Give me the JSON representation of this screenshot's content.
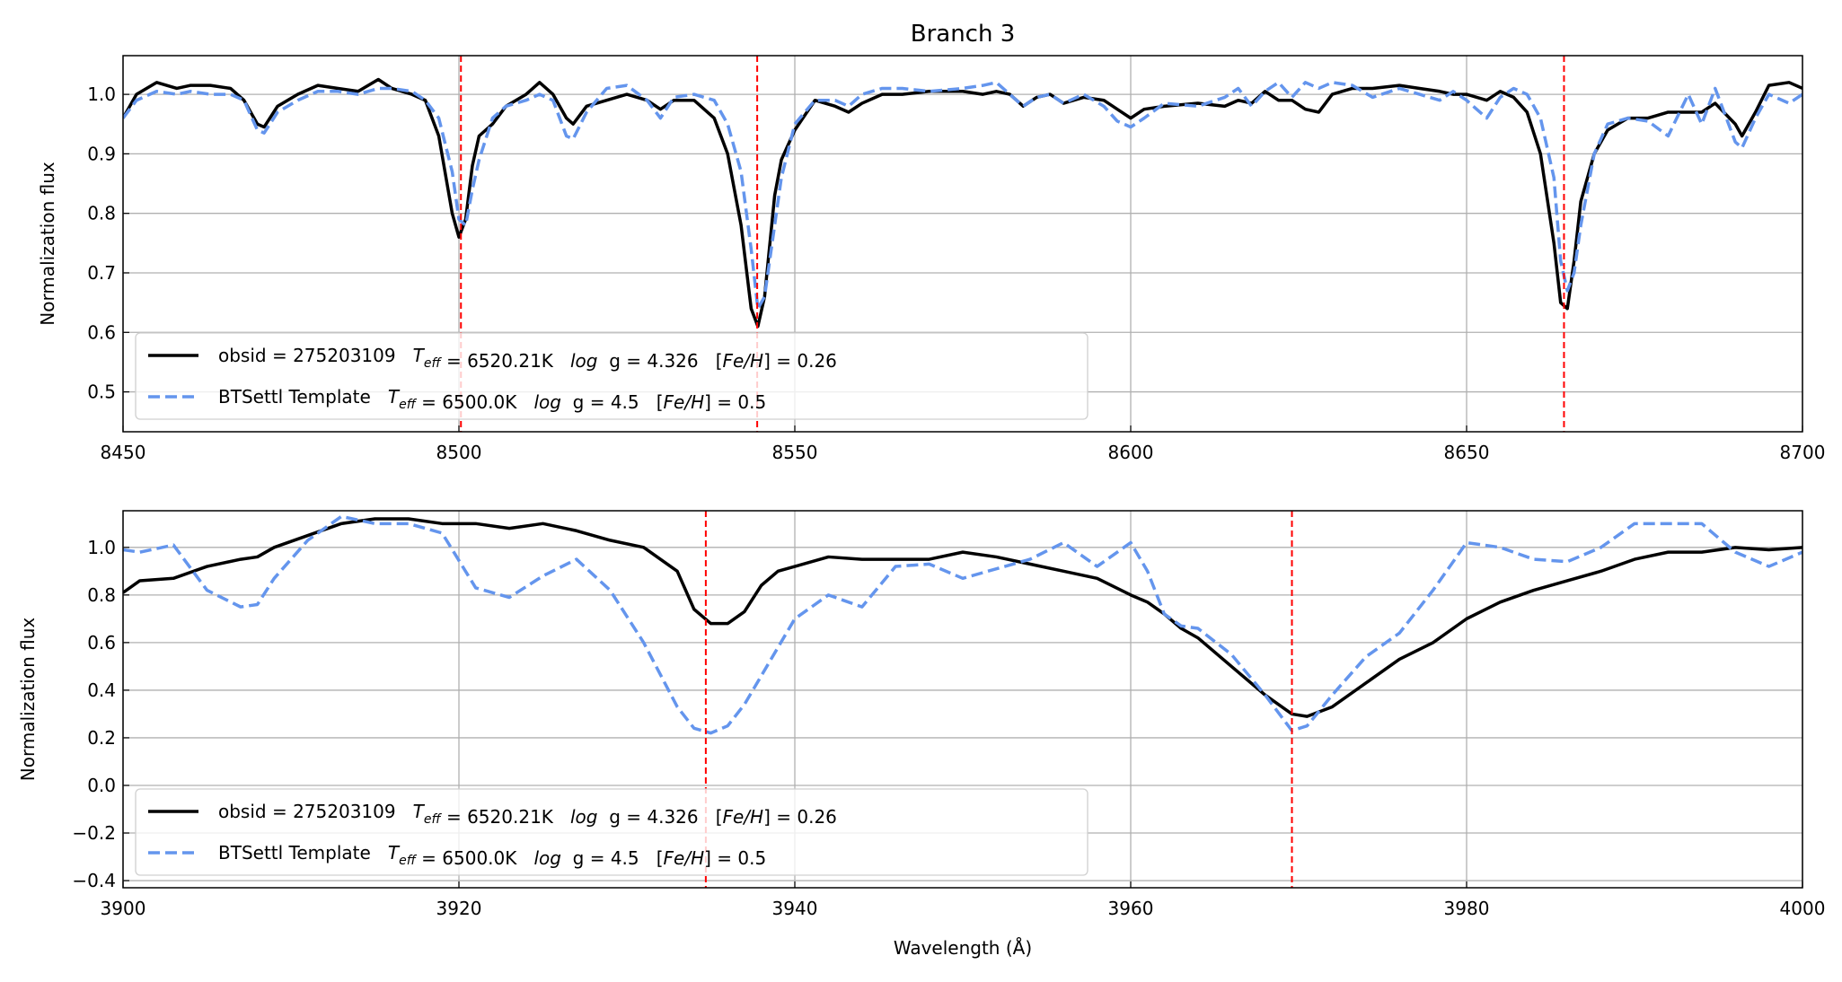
{
  "chart_data": [
    {
      "type": "line",
      "title": "Branch 3",
      "ylabel": "Normalization flux",
      "x": [
        8450,
        8452,
        8455,
        8458,
        8460,
        8463,
        8466,
        8468,
        8470,
        8471,
        8473,
        8476,
        8479,
        8482,
        8485,
        8488,
        8490,
        8493,
        8495,
        8497,
        8499,
        8500,
        8501,
        8502,
        8503,
        8505,
        8507,
        8510,
        8512,
        8514,
        8516,
        8517,
        8519,
        8522,
        8525,
        8528,
        8530,
        8532,
        8535,
        8538,
        8540,
        8542,
        8543.5,
        8544.5,
        8545.5,
        8547,
        8548,
        8550,
        8553,
        8556,
        8558,
        8560,
        8563,
        8566,
        8570,
        8575,
        8578,
        8580,
        8582,
        8584,
        8586,
        8588,
        8590,
        8593,
        8596,
        8598,
        8600,
        8602,
        8605,
        8610,
        8614,
        8616,
        8618,
        8620,
        8622,
        8624,
        8626,
        8628,
        8630,
        8633,
        8636,
        8640,
        8643,
        8646,
        8648,
        8650,
        8653,
        8655,
        8657,
        8659,
        8661,
        8663,
        8664,
        8665,
        8666,
        8667,
        8669,
        8671,
        8674,
        8677,
        8680,
        8683,
        8685,
        8687,
        8690,
        8691,
        8693,
        8695,
        8698,
        8700
      ],
      "series": [
        {
          "name": "obsid = 275203109   Teff = 6520.21K   log  g = 4.326   [Fe/H] = 0.26",
          "color": "#000000",
          "dashed": false,
          "values": [
            0.96,
            1.0,
            1.02,
            1.01,
            1.015,
            1.015,
            1.01,
            0.99,
            0.95,
            0.945,
            0.98,
            1.0,
            1.015,
            1.01,
            1.005,
            1.025,
            1.01,
            1.0,
            0.99,
            0.93,
            0.8,
            0.76,
            0.79,
            0.88,
            0.93,
            0.95,
            0.98,
            1.0,
            1.02,
            1.0,
            0.96,
            0.95,
            0.98,
            0.99,
            1.0,
            0.99,
            0.975,
            0.99,
            0.99,
            0.96,
            0.9,
            0.78,
            0.64,
            0.61,
            0.66,
            0.83,
            0.89,
            0.94,
            0.99,
            0.98,
            0.97,
            0.985,
            1.0,
            1.0,
            1.005,
            1.005,
            1.0,
            1.005,
            1.0,
            0.98,
            0.995,
            1.0,
            0.985,
            0.995,
            0.99,
            0.975,
            0.96,
            0.975,
            0.98,
            0.985,
            0.98,
            0.99,
            0.985,
            1.005,
            0.99,
            0.99,
            0.975,
            0.97,
            1.0,
            1.01,
            1.01,
            1.015,
            1.01,
            1.005,
            1.0,
            1.0,
            0.99,
            1.005,
            0.995,
            0.97,
            0.9,
            0.75,
            0.65,
            0.64,
            0.72,
            0.82,
            0.9,
            0.94,
            0.96,
            0.96,
            0.97,
            0.97,
            0.97,
            0.985,
            0.95,
            0.93,
            0.97,
            1.015,
            1.02,
            1.01
          ]
        },
        {
          "name": "BTSettl Template   Teff = 6500.0K   log  g = 4.5   [Fe/H] = 0.5",
          "color": "#6495ED",
          "dashed": true,
          "values": [
            0.96,
            0.99,
            1.005,
            1.0,
            1.005,
            1.0,
            1.0,
            0.99,
            0.94,
            0.935,
            0.97,
            0.99,
            1.005,
            1.005,
            1.0,
            1.01,
            1.01,
            1.005,
            0.99,
            0.96,
            0.87,
            0.79,
            0.78,
            0.84,
            0.89,
            0.96,
            0.98,
            0.99,
            1.0,
            0.99,
            0.93,
            0.925,
            0.97,
            1.01,
            1.015,
            0.99,
            0.96,
            0.995,
            1.0,
            0.99,
            0.95,
            0.87,
            0.74,
            0.64,
            0.66,
            0.78,
            0.86,
            0.95,
            0.99,
            0.99,
            0.98,
            1.0,
            1.01,
            1.01,
            1.005,
            1.01,
            1.015,
            1.02,
            1.0,
            0.98,
            0.995,
            1.0,
            0.985,
            1.0,
            0.98,
            0.955,
            0.945,
            0.96,
            0.985,
            0.98,
            0.995,
            1.01,
            0.98,
            1.005,
            1.02,
            0.995,
            1.02,
            1.01,
            1.02,
            1.015,
            0.995,
            1.01,
            1.0,
            0.99,
            1.005,
            0.99,
            0.96,
            0.995,
            1.01,
            1.0,
            0.96,
            0.86,
            0.72,
            0.67,
            0.7,
            0.78,
            0.9,
            0.95,
            0.96,
            0.955,
            0.93,
            1.0,
            0.95,
            1.01,
            0.92,
            0.91,
            0.96,
            1.0,
            0.985,
            1.0
          ]
        }
      ],
      "xlim": [
        8450,
        8700
      ],
      "xticks": [
        8450,
        8500,
        8550,
        8600,
        8650,
        8700
      ],
      "ylim": [
        0.433,
        1.065
      ],
      "yticks": [
        0.5,
        0.6,
        0.7,
        0.8,
        0.9,
        {
          "value": 1.0,
          "label": "1.0"
        }
      ],
      "grid": true,
      "legend": "lower left",
      "vlines": [
        8500.3,
        8544.4,
        8664.5
      ],
      "vline_color": "#ff0000"
    },
    {
      "type": "line",
      "ylabel": "Normalization flux",
      "xlabel": "Wavelength (Å)",
      "x": [
        3900,
        3901,
        3903,
        3905,
        3907,
        3908,
        3909,
        3911,
        3913,
        3915,
        3917,
        3919,
        3921,
        3923,
        3925,
        3927,
        3929,
        3931,
        3933,
        3934,
        3935,
        3936,
        3937,
        3938,
        3939,
        3940,
        3942,
        3944,
        3946,
        3948,
        3950,
        3952,
        3954,
        3956,
        3958,
        3960,
        3961,
        3962,
        3963,
        3964,
        3966,
        3968,
        3969.6,
        3970.5,
        3972,
        3974,
        3976,
        3978,
        3980,
        3982,
        3984,
        3986,
        3988,
        3990,
        3992,
        3994,
        3996,
        3998,
        4000
      ],
      "series": [
        {
          "name": "obsid = 275203109   Teff = 6520.21K   log  g = 4.326   [Fe/H] = 0.26",
          "color": "#000000",
          "dashed": false,
          "values": [
            0.81,
            0.86,
            0.87,
            0.92,
            0.95,
            0.96,
            1.0,
            1.05,
            1.1,
            1.12,
            1.12,
            1.1,
            1.1,
            1.08,
            1.1,
            1.07,
            1.03,
            1.0,
            0.9,
            0.74,
            0.68,
            0.68,
            0.73,
            0.84,
            0.9,
            0.92,
            0.96,
            0.95,
            0.95,
            0.95,
            0.98,
            0.96,
            0.93,
            0.9,
            0.87,
            0.8,
            0.77,
            0.72,
            0.66,
            0.62,
            0.5,
            0.38,
            0.3,
            0.29,
            0.33,
            0.43,
            0.53,
            0.6,
            0.7,
            0.77,
            0.82,
            0.86,
            0.9,
            0.95,
            0.98,
            0.98,
            1.0,
            0.99,
            1.0
          ]
        },
        {
          "name": "BTSettl Template   Teff = 6500.0K   log  g = 4.5   [Fe/H] = 0.5",
          "color": "#6495ED",
          "dashed": true,
          "values": [
            0.99,
            0.98,
            1.01,
            0.82,
            0.75,
            0.76,
            0.87,
            1.03,
            1.13,
            1.1,
            1.1,
            1.06,
            0.83,
            0.79,
            0.88,
            0.95,
            0.82,
            0.6,
            0.33,
            0.24,
            0.22,
            0.25,
            0.34,
            0.46,
            0.58,
            0.7,
            0.8,
            0.75,
            0.92,
            0.93,
            0.87,
            0.91,
            0.95,
            1.02,
            0.92,
            1.02,
            0.9,
            0.72,
            0.67,
            0.66,
            0.55,
            0.38,
            0.23,
            0.25,
            0.38,
            0.54,
            0.64,
            0.82,
            1.02,
            1.0,
            0.95,
            0.94,
            1.0,
            1.1,
            1.1,
            1.1,
            0.98,
            0.92,
            0.98
          ]
        }
      ],
      "xlim": [
        3900,
        4000
      ],
      "xticks": [
        3900,
        3920,
        3940,
        3960,
        3980,
        4000
      ],
      "ylim": [
        -0.43,
        1.154
      ],
      "yticks": [
        {
          "value": -0.4,
          "label": "−0.4"
        },
        {
          "value": -0.2,
          "label": "−0.2"
        },
        {
          "value": 0.0,
          "label": "0.0"
        },
        0.2,
        0.4,
        0.6,
        0.8,
        {
          "value": 1.0,
          "label": "1.0"
        }
      ],
      "grid": true,
      "legend": "lower left",
      "vlines": [
        3934.7,
        3969.6
      ],
      "vline_color": "#ff0000"
    }
  ]
}
